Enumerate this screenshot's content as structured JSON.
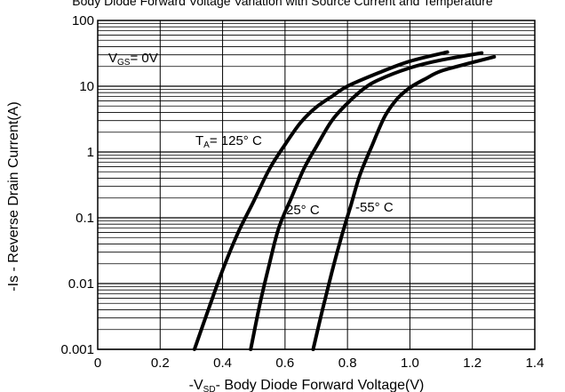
{
  "chart_data": {
    "type": "line",
    "title": "Body Diode Forward Voltage Variation with Source Current and Temperature",
    "xlabel": {
      "pre": "-V",
      "sub": "SD",
      "post": "- Body Diode Forward Voltage(V)"
    },
    "ylabel": "-Is - Reverse Drain Current(A)",
    "x_scale": "linear",
    "y_scale": "log",
    "xlim": [
      0,
      1.4
    ],
    "ylim": [
      0.001,
      100
    ],
    "x_ticks": [
      0,
      0.2,
      0.4,
      0.6,
      0.8,
      1.0,
      1.2,
      1.4
    ],
    "x_tick_labels": [
      "0",
      "0.2",
      "0.4",
      "0.6",
      "0.8",
      "1.0",
      "1.2",
      "1.4"
    ],
    "y_ticks": [
      0.001,
      0.01,
      0.1,
      1,
      10,
      100
    ],
    "y_tick_labels": [
      "0.001",
      "0.01",
      "0.1",
      "1",
      "10",
      "100"
    ],
    "grid": true,
    "condition": {
      "pre": "V",
      "sub": "GS",
      "post": "= 0V"
    },
    "series": [
      {
        "name": "125° C",
        "label": {
          "pre": "T",
          "sub": "A",
          "post": "= 125°  C"
        },
        "x": [
          0.31,
          0.35,
          0.4,
          0.45,
          0.5,
          0.55,
          0.6,
          0.65,
          0.7,
          0.75,
          0.8,
          0.9,
          1.0,
          1.12
        ],
        "y": [
          0.001,
          0.0035,
          0.016,
          0.06,
          0.18,
          0.55,
          1.3,
          2.8,
          4.8,
          7,
          10,
          16,
          24,
          33
        ]
      },
      {
        "name": "25° C",
        "label": {
          "pre": "",
          "sub": "",
          "post": "25°  C"
        },
        "x": [
          0.49,
          0.52,
          0.55,
          0.58,
          0.62,
          0.66,
          0.7,
          0.75,
          0.8,
          0.85,
          0.9,
          1.0,
          1.1,
          1.23
        ],
        "y": [
          0.001,
          0.005,
          0.02,
          0.07,
          0.2,
          0.55,
          1.2,
          3,
          5.5,
          9,
          12.5,
          19,
          25,
          32
        ]
      },
      {
        "name": "-55° C",
        "label": {
          "pre": "",
          "sub": "",
          "post": "-55°  C"
        },
        "x": [
          0.69,
          0.72,
          0.75,
          0.78,
          0.81,
          0.84,
          0.88,
          0.92,
          0.96,
          1.0,
          1.05,
          1.1,
          1.2,
          1.27
        ],
        "y": [
          0.001,
          0.004,
          0.015,
          0.05,
          0.15,
          0.45,
          1.3,
          3.5,
          6.5,
          9.5,
          13,
          17,
          23,
          28
        ]
      }
    ]
  }
}
